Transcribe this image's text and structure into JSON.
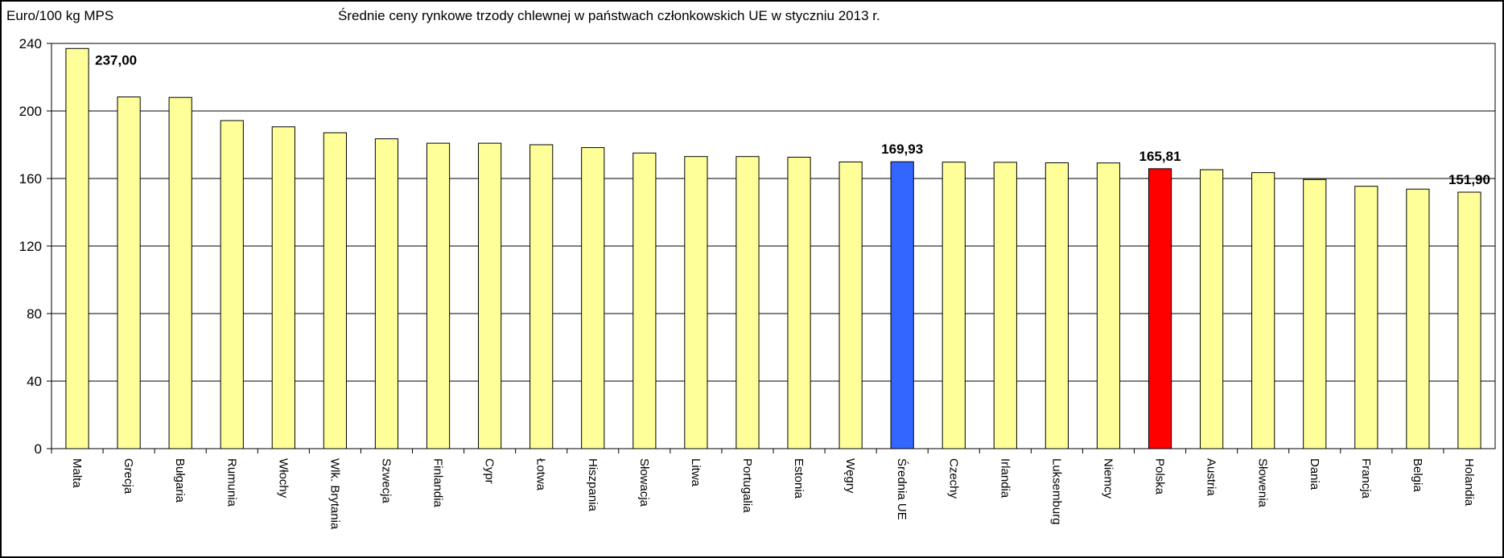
{
  "header": {
    "unit_label": "Euro/100 kg MPS",
    "title": "Średnie ceny rynkowe trzody chlewnej w państwach członkowskich UE w styczniu 2013 r."
  },
  "colors": {
    "bar_default": "#FFFF99",
    "bar_average": "#3366FF",
    "bar_poland": "#FF0000",
    "outline": "#000000"
  },
  "chart_data": {
    "type": "bar",
    "categories": [
      "Malta",
      "Grecja",
      "Bułgaria",
      "Rumunia",
      "Włochy",
      "Wlk. Brytania",
      "Szwecja",
      "Finlandia",
      "Cypr",
      "Łotwa",
      "Hiszpania",
      "Słowacja",
      "Litwa",
      "Portugalia",
      "Estonia",
      "Węgry",
      "Średnia UE",
      "Czechy",
      "Irlandia",
      "Luksemburg",
      "Niemcy",
      "Polska",
      "Austria",
      "Słowenia",
      "Dania",
      "Francja",
      "Belgia",
      "Holandia"
    ],
    "values": [
      237.0,
      208.3,
      208.0,
      194.3,
      190.6,
      187.1,
      183.5,
      180.9,
      180.9,
      180.0,
      178.3,
      175.1,
      173.0,
      173.0,
      172.6,
      169.8,
      169.93,
      169.7,
      169.6,
      169.3,
      169.2,
      165.81,
      165.2,
      163.5,
      159.4,
      155.4,
      153.7,
      151.9
    ],
    "highlight": {
      "Średnia UE": "bar_average",
      "Polska": "bar_poland"
    },
    "data_labels": [
      {
        "category": "Malta",
        "text": "237,00"
      },
      {
        "category": "Średnia UE",
        "text": "169,93"
      },
      {
        "category": "Polska",
        "text": "165,81"
      },
      {
        "category": "Holandia",
        "text": "151,90"
      }
    ],
    "ylim": [
      0,
      240
    ],
    "yticks": [
      0,
      40,
      80,
      120,
      160,
      200,
      240
    ],
    "grid": true,
    "legend": "none"
  }
}
